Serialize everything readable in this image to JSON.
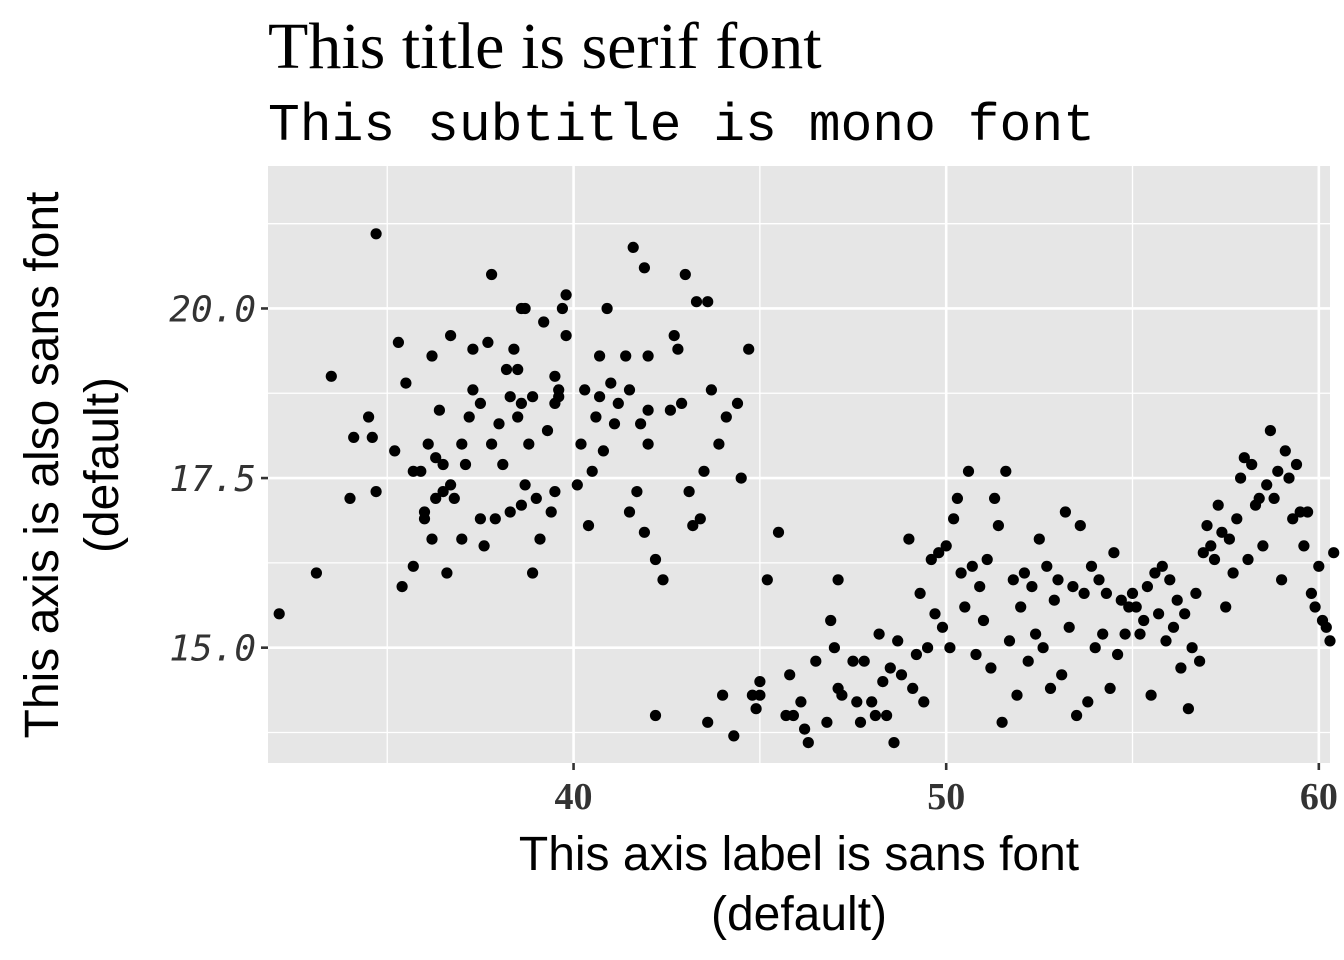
{
  "chart_data": {
    "type": "scatter",
    "title": "This title is serif font",
    "subtitle": "This subtitle is mono font",
    "xlabel": [
      "This axis label is sans font",
      "(default)"
    ],
    "ylabel": [
      "This axis is also sans font",
      "(default)"
    ],
    "xlim": [
      31.8,
      60.3
    ],
    "ylim": [
      13.3,
      22.1
    ],
    "x_ticks": [
      40,
      50,
      60
    ],
    "x_tick_labels": [
      "40",
      "50",
      "60"
    ],
    "y_ticks": [
      15.0,
      17.5,
      20.0
    ],
    "y_tick_labels": [
      "15.0",
      "17.5",
      "20.0"
    ],
    "grid": true,
    "background": "#e6e6e6",
    "point_color": "#000000",
    "points": [
      [
        32.1,
        15.5
      ],
      [
        33.1,
        16.1
      ],
      [
        33.5,
        19.0
      ],
      [
        34.0,
        17.2
      ],
      [
        34.1,
        18.1
      ],
      [
        34.5,
        18.4
      ],
      [
        34.6,
        18.1
      ],
      [
        34.7,
        21.1
      ],
      [
        34.7,
        17.3
      ],
      [
        35.2,
        17.9
      ],
      [
        35.3,
        19.5
      ],
      [
        35.4,
        15.9
      ],
      [
        35.5,
        18.9
      ],
      [
        35.7,
        16.2
      ],
      [
        35.7,
        17.6
      ],
      [
        35.9,
        17.6
      ],
      [
        36.0,
        16.9
      ],
      [
        36.0,
        17.0
      ],
      [
        36.1,
        18.0
      ],
      [
        36.2,
        19.3
      ],
      [
        36.2,
        16.6
      ],
      [
        36.3,
        17.8
      ],
      [
        36.3,
        17.2
      ],
      [
        36.4,
        18.5
      ],
      [
        36.5,
        17.3
      ],
      [
        36.5,
        17.7
      ],
      [
        36.6,
        16.1
      ],
      [
        36.7,
        19.6
      ],
      [
        36.7,
        17.4
      ],
      [
        36.8,
        17.2
      ],
      [
        37.0,
        18.0
      ],
      [
        37.0,
        16.6
      ],
      [
        37.1,
        17.7
      ],
      [
        37.2,
        18.4
      ],
      [
        37.3,
        18.8
      ],
      [
        37.3,
        19.4
      ],
      [
        37.5,
        18.6
      ],
      [
        37.5,
        16.9
      ],
      [
        37.6,
        16.5
      ],
      [
        37.7,
        19.5
      ],
      [
        37.8,
        20.5
      ],
      [
        37.8,
        18.0
      ],
      [
        37.9,
        16.9
      ],
      [
        38.0,
        18.3
      ],
      [
        38.1,
        17.7
      ],
      [
        38.2,
        19.1
      ],
      [
        38.3,
        17.0
      ],
      [
        38.3,
        18.7
      ],
      [
        38.4,
        19.4
      ],
      [
        38.5,
        18.4
      ],
      [
        38.5,
        19.1
      ],
      [
        38.6,
        20.0
      ],
      [
        38.6,
        17.1
      ],
      [
        38.6,
        18.6
      ],
      [
        38.7,
        20.0
      ],
      [
        38.7,
        17.4
      ],
      [
        38.8,
        18.0
      ],
      [
        38.9,
        16.1
      ],
      [
        38.9,
        18.7
      ],
      [
        39.0,
        17.2
      ],
      [
        39.1,
        16.6
      ],
      [
        39.2,
        19.8
      ],
      [
        39.3,
        18.2
      ],
      [
        39.4,
        17.0
      ],
      [
        39.5,
        17.3
      ],
      [
        39.5,
        19.0
      ],
      [
        39.5,
        18.6
      ],
      [
        39.6,
        18.8
      ],
      [
        39.6,
        18.7
      ],
      [
        39.7,
        20.0
      ],
      [
        39.8,
        19.6
      ],
      [
        39.8,
        20.2
      ],
      [
        40.1,
        17.4
      ],
      [
        40.2,
        18.0
      ],
      [
        40.3,
        18.8
      ],
      [
        40.4,
        16.8
      ],
      [
        40.5,
        17.6
      ],
      [
        40.6,
        18.4
      ],
      [
        40.7,
        19.3
      ],
      [
        40.7,
        18.7
      ],
      [
        40.8,
        17.9
      ],
      [
        40.9,
        20.0
      ],
      [
        41.0,
        18.9
      ],
      [
        41.1,
        18.3
      ],
      [
        41.2,
        18.6
      ],
      [
        41.4,
        19.3
      ],
      [
        41.5,
        18.8
      ],
      [
        41.5,
        17.0
      ],
      [
        41.6,
        20.9
      ],
      [
        41.7,
        17.3
      ],
      [
        41.8,
        18.3
      ],
      [
        41.9,
        16.7
      ],
      [
        41.9,
        20.6
      ],
      [
        42.0,
        19.3
      ],
      [
        42.0,
        18.5
      ],
      [
        42.0,
        18.0
      ],
      [
        42.2,
        16.3
      ],
      [
        42.2,
        14.0
      ],
      [
        42.4,
        16.0
      ],
      [
        42.6,
        18.5
      ],
      [
        42.7,
        19.6
      ],
      [
        42.8,
        19.4
      ],
      [
        42.9,
        18.6
      ],
      [
        43.0,
        20.5
      ],
      [
        43.1,
        17.3
      ],
      [
        43.2,
        16.8
      ],
      [
        43.3,
        20.1
      ],
      [
        43.4,
        16.9
      ],
      [
        43.5,
        17.6
      ],
      [
        43.6,
        20.1
      ],
      [
        43.6,
        13.9
      ],
      [
        43.7,
        18.8
      ],
      [
        43.9,
        18.0
      ],
      [
        44.0,
        14.3
      ],
      [
        44.1,
        18.4
      ],
      [
        44.3,
        13.7
      ],
      [
        44.4,
        18.6
      ],
      [
        44.5,
        17.5
      ],
      [
        44.7,
        19.4
      ],
      [
        44.8,
        14.3
      ],
      [
        44.9,
        14.1
      ],
      [
        45.0,
        14.5
      ],
      [
        45.0,
        14.3
      ],
      [
        45.2,
        16.0
      ],
      [
        45.5,
        16.7
      ],
      [
        45.7,
        14.0
      ],
      [
        45.8,
        14.6
      ],
      [
        45.9,
        14.0
      ],
      [
        46.1,
        14.2
      ],
      [
        46.2,
        13.8
      ],
      [
        46.3,
        13.6
      ],
      [
        46.5,
        14.8
      ],
      [
        46.8,
        13.9
      ],
      [
        46.9,
        15.4
      ],
      [
        47.0,
        15.0
      ],
      [
        47.1,
        14.4
      ],
      [
        47.1,
        16.0
      ],
      [
        47.2,
        14.3
      ],
      [
        47.5,
        14.8
      ],
      [
        47.6,
        14.2
      ],
      [
        47.7,
        13.9
      ],
      [
        47.8,
        14.8
      ],
      [
        48.0,
        14.2
      ],
      [
        48.1,
        14.0
      ],
      [
        48.2,
        15.2
      ],
      [
        48.3,
        14.5
      ],
      [
        48.4,
        14.0
      ],
      [
        48.5,
        14.7
      ],
      [
        48.6,
        13.6
      ],
      [
        48.7,
        15.1
      ],
      [
        48.8,
        14.6
      ],
      [
        49.0,
        16.6
      ],
      [
        49.1,
        14.4
      ],
      [
        49.2,
        14.9
      ],
      [
        49.3,
        15.8
      ],
      [
        49.4,
        14.2
      ],
      [
        49.5,
        15.0
      ],
      [
        49.6,
        16.3
      ],
      [
        49.7,
        15.5
      ],
      [
        49.8,
        16.4
      ],
      [
        49.9,
        15.3
      ],
      [
        50.0,
        16.5
      ],
      [
        50.1,
        15.0
      ],
      [
        50.2,
        16.9
      ],
      [
        50.3,
        17.2
      ],
      [
        50.4,
        16.1
      ],
      [
        50.5,
        15.6
      ],
      [
        50.6,
        17.6
      ],
      [
        50.7,
        16.2
      ],
      [
        50.8,
        14.9
      ],
      [
        50.9,
        15.9
      ],
      [
        51.0,
        15.4
      ],
      [
        51.1,
        16.3
      ],
      [
        51.2,
        14.7
      ],
      [
        51.3,
        17.2
      ],
      [
        51.4,
        16.8
      ],
      [
        51.5,
        13.9
      ],
      [
        51.6,
        17.6
      ],
      [
        51.7,
        15.1
      ],
      [
        51.8,
        16.0
      ],
      [
        51.9,
        14.3
      ],
      [
        52.0,
        15.6
      ],
      [
        52.1,
        16.1
      ],
      [
        52.2,
        14.8
      ],
      [
        52.3,
        15.9
      ],
      [
        52.4,
        15.2
      ],
      [
        52.5,
        16.6
      ],
      [
        52.6,
        15.0
      ],
      [
        52.7,
        16.2
      ],
      [
        52.8,
        14.4
      ],
      [
        52.9,
        15.7
      ],
      [
        53.0,
        16.0
      ],
      [
        53.1,
        14.6
      ],
      [
        53.2,
        17.0
      ],
      [
        53.3,
        15.3
      ],
      [
        53.4,
        15.9
      ],
      [
        53.5,
        14.0
      ],
      [
        53.6,
        16.8
      ],
      [
        53.7,
        15.8
      ],
      [
        53.8,
        14.2
      ],
      [
        53.9,
        16.2
      ],
      [
        54.0,
        15.0
      ],
      [
        54.1,
        16.0
      ],
      [
        54.2,
        15.2
      ],
      [
        54.3,
        15.8
      ],
      [
        54.4,
        14.4
      ],
      [
        54.5,
        16.4
      ],
      [
        54.6,
        14.9
      ],
      [
        54.7,
        15.7
      ],
      [
        54.8,
        15.2
      ],
      [
        54.9,
        15.6
      ],
      [
        55.0,
        15.8
      ],
      [
        55.1,
        15.6
      ],
      [
        55.2,
        15.2
      ],
      [
        55.3,
        15.4
      ],
      [
        55.4,
        15.9
      ],
      [
        55.5,
        14.3
      ],
      [
        55.6,
        16.1
      ],
      [
        55.7,
        15.5
      ],
      [
        55.8,
        16.2
      ],
      [
        55.9,
        15.1
      ],
      [
        56.0,
        16.0
      ],
      [
        56.1,
        15.3
      ],
      [
        56.2,
        15.7
      ],
      [
        56.3,
        14.7
      ],
      [
        56.4,
        15.5
      ],
      [
        56.5,
        14.1
      ],
      [
        56.6,
        15.0
      ],
      [
        56.7,
        15.8
      ],
      [
        56.8,
        14.8
      ],
      [
        56.9,
        16.4
      ],
      [
        57.0,
        16.8
      ],
      [
        57.1,
        16.5
      ],
      [
        57.2,
        16.3
      ],
      [
        57.3,
        17.1
      ],
      [
        57.4,
        16.7
      ],
      [
        57.5,
        15.6
      ],
      [
        57.6,
        16.6
      ],
      [
        57.7,
        16.1
      ],
      [
        57.8,
        16.9
      ],
      [
        57.9,
        17.5
      ],
      [
        58.0,
        17.8
      ],
      [
        58.1,
        16.3
      ],
      [
        58.2,
        17.7
      ],
      [
        58.3,
        17.1
      ],
      [
        58.4,
        17.2
      ],
      [
        58.5,
        16.5
      ],
      [
        58.6,
        17.4
      ],
      [
        58.7,
        18.2
      ],
      [
        58.8,
        17.2
      ],
      [
        58.9,
        17.6
      ],
      [
        59.0,
        16.0
      ],
      [
        59.1,
        17.9
      ],
      [
        59.2,
        17.5
      ],
      [
        59.3,
        16.9
      ],
      [
        59.4,
        17.7
      ],
      [
        59.5,
        17.0
      ],
      [
        59.6,
        16.5
      ],
      [
        59.7,
        17.0
      ],
      [
        59.8,
        15.8
      ],
      [
        59.9,
        15.6
      ],
      [
        60.0,
        16.2
      ],
      [
        60.1,
        15.4
      ],
      [
        60.2,
        15.3
      ],
      [
        60.3,
        15.1
      ],
      [
        60.4,
        16.4
      ]
    ]
  }
}
